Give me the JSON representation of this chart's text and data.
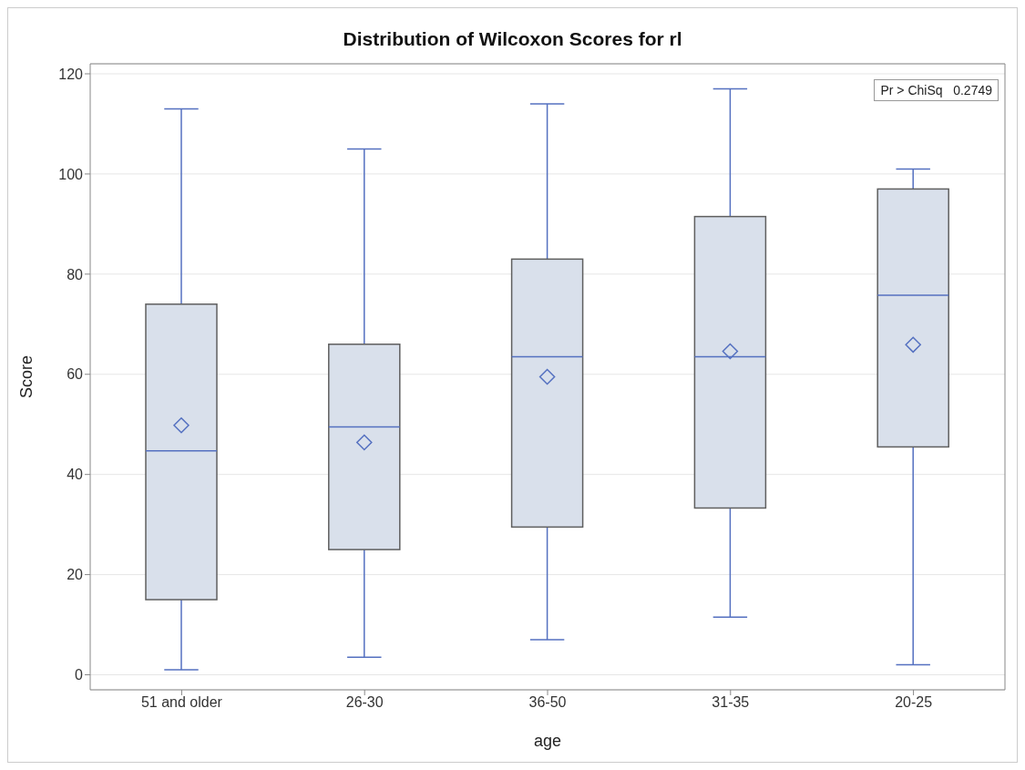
{
  "chart_data": {
    "type": "box",
    "title": "Distribution of Wilcoxon Scores for rl",
    "xlabel": "age",
    "ylabel": "Score",
    "categories": [
      "51 and older",
      "26-30",
      "36-50",
      "31-35",
      "20-25"
    ],
    "boxes": [
      {
        "low": 1,
        "q1": 15,
        "median": 44.7,
        "q3": 74,
        "high": 113,
        "mean": 49.8
      },
      {
        "low": 3.5,
        "q1": 25,
        "median": 49.5,
        "q3": 66,
        "high": 105,
        "mean": 46.4
      },
      {
        "low": 7,
        "q1": 29.5,
        "median": 63.5,
        "q3": 83,
        "high": 114,
        "mean": 59.5
      },
      {
        "low": 11.5,
        "q1": 33.3,
        "median": 63.5,
        "q3": 91.5,
        "high": 117,
        "mean": 64.6
      },
      {
        "low": 2,
        "q1": 45.5,
        "median": 75.8,
        "q3": 97,
        "high": 101,
        "mean": 65.9
      }
    ],
    "color": "#d9e0eb",
    "ylim": [
      -3,
      122
    ],
    "yticks": [
      0,
      20,
      40,
      60,
      80,
      100,
      120
    ],
    "grid": "y",
    "marker": "diamond",
    "annotations": [
      "Pr > ChiSq   0.2749"
    ]
  }
}
